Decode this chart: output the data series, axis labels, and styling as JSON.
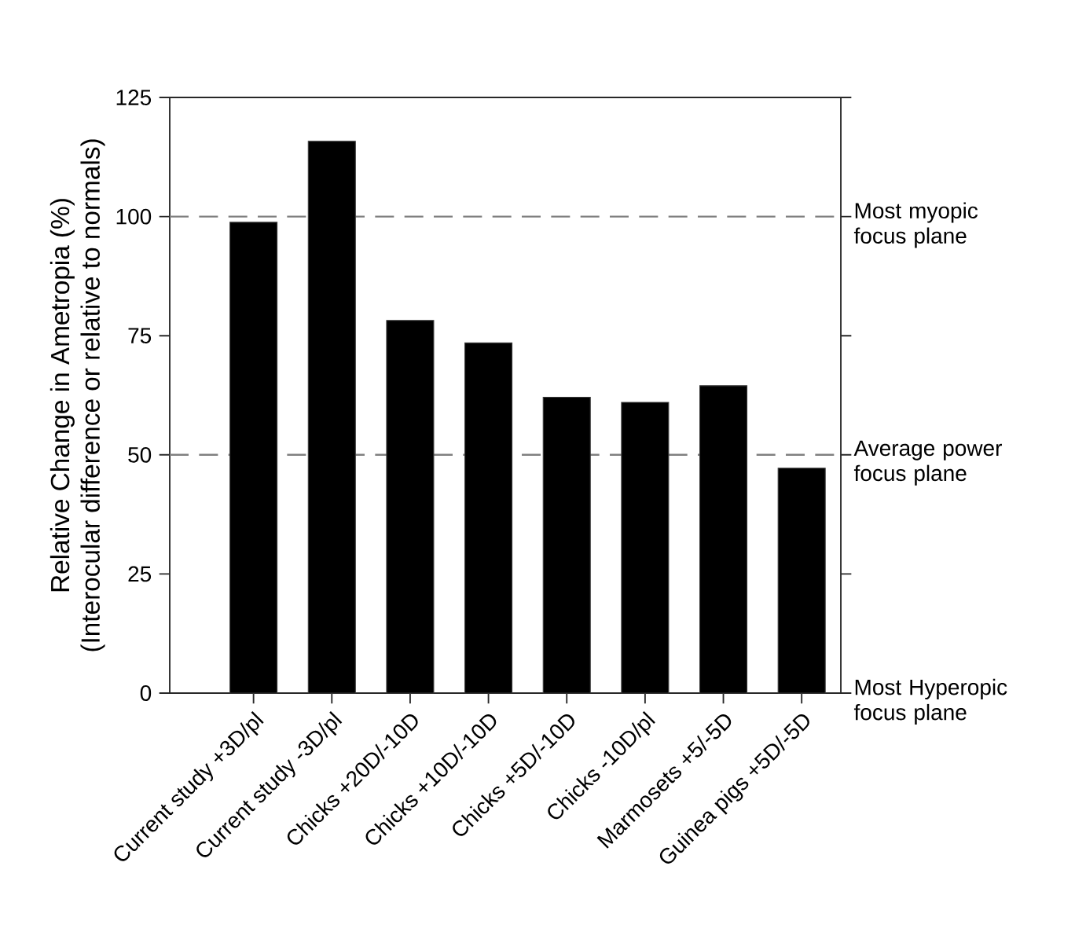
{
  "chart_data": {
    "type": "bar",
    "ylabel": "Relative Change in Ametropia (%) (Interocular difference or relative to normals)",
    "categories": [
      "Current study +3D/pl",
      "Current study -3D/pl",
      "Chicks +20D/-10D",
      "Chicks +10D/-10D",
      "Chicks +5D/-10D",
      "Chicks -10D/pl",
      "Marmosets +5/-5D",
      "Guinea pigs +5D/-5D"
    ],
    "values": [
      98.8,
      115.8,
      78.2,
      73.5,
      62.1,
      61.0,
      64.5,
      47.2
    ],
    "color": "#000000",
    "ylim": [
      0,
      125
    ],
    "yticks": [
      0,
      25,
      50,
      75,
      100,
      125
    ],
    "ref_lines": [
      {
        "axis": "y",
        "value": 100,
        "label": "Most myopic focus plane",
        "color": "#808080",
        "line_style": "dashed"
      },
      {
        "axis": "y",
        "value": 50,
        "label": "Average power focus plane",
        "color": "#808080",
        "line_style": "dashed"
      }
    ],
    "annotations": [
      "Most Hyperopic focus plane"
    ],
    "grid": false
  }
}
